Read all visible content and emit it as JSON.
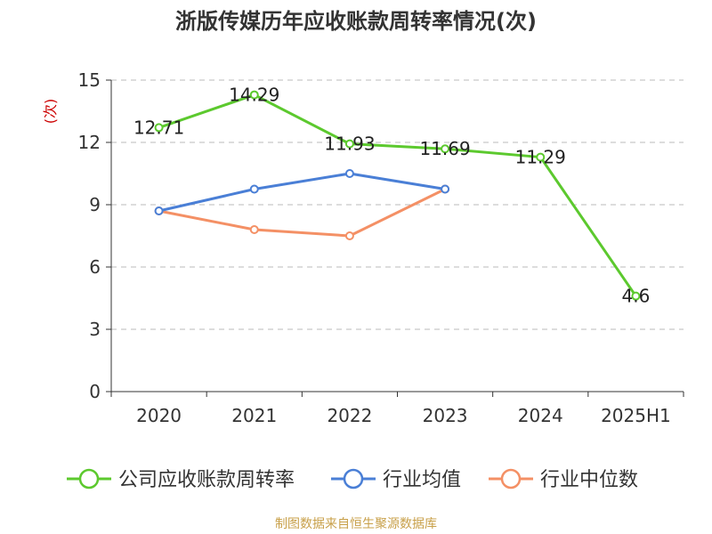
{
  "title": "浙版传媒历年应收账款周转率情况(次)",
  "source": "制图数据来自恒生聚源数据库",
  "chart_data": {
    "type": "line",
    "title": "浙版传媒历年应收账款周转率情况(次)",
    "xlabel": "",
    "ylabel": "(次)",
    "categories": [
      "2020",
      "2021",
      "2022",
      "2023",
      "2024",
      "2025H1"
    ],
    "ylim": [
      0,
      15
    ],
    "yticks": [
      0,
      3,
      6,
      9,
      12,
      15
    ],
    "grid": true,
    "legend_position": "bottom",
    "series": [
      {
        "name": "公司应收账款周转率",
        "color": "#5cc92e",
        "values": [
          12.71,
          14.29,
          11.93,
          11.69,
          11.29,
          4.6
        ],
        "labels": [
          "12.71",
          "14.29",
          "11.93",
          "11.69",
          "11.29",
          "4.6"
        ]
      },
      {
        "name": "行业均值",
        "color": "#4a7fd6",
        "values": [
          8.7,
          9.75,
          10.5,
          9.75,
          null,
          null
        ]
      },
      {
        "name": "行业中位数",
        "color": "#f49065",
        "values": [
          8.7,
          7.8,
          7.5,
          9.75,
          null,
          null
        ]
      }
    ]
  }
}
